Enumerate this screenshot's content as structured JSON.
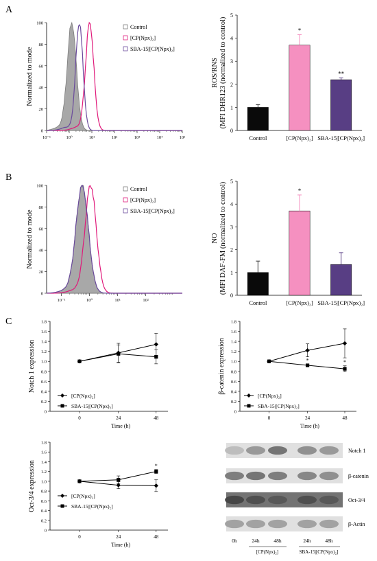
{
  "panels": {
    "A": "A",
    "B": "B",
    "C": "C"
  },
  "colors": {
    "control_hist": "#a8a8a8",
    "control_edge": "#7a7a7a",
    "cp_npx": "#e0197a",
    "sba_cp_npx": "#6a4a9c",
    "bar_control": "#0a0a0a",
    "bar_cp_npx": "#f590c0",
    "bar_sba_cp_npx": "#583e84"
  },
  "legend": {
    "control": "Control",
    "cp_npx": "[CP(Npx)₂]",
    "sba_cp_npx": "SBA-15|[CP(Npx)₂]"
  },
  "chart_data": [
    {
      "id": "A-histogram",
      "type": "area",
      "ylabel": "Normalized to mode",
      "xscale": "log",
      "xlim": [
        0.1,
        100000
      ],
      "ylim": [
        0,
        100
      ],
      "xticks": [
        "10⁻¹",
        "10⁰",
        "10¹",
        "10²",
        "10³",
        "10⁴",
        "10⁵"
      ],
      "yticks": [
        "0",
        "20",
        "40",
        "60",
        "80",
        "100"
      ],
      "series": [
        {
          "name": "Control",
          "peak_x": 1.3,
          "width": 0.2,
          "filled": true
        },
        {
          "name": "[CP(Npx)₂]",
          "peak_x": 8.0,
          "width": 0.18,
          "filled": false
        },
        {
          "name": "SBA-15|[CP(Npx)₂]",
          "peak_x": 2.8,
          "width": 0.16,
          "filled": false
        }
      ]
    },
    {
      "id": "A-bar",
      "type": "bar",
      "ylabel": "ROS/RNS",
      "ylabel2": "(MFI DHR123 (normalized to control)",
      "ylim": [
        0,
        5
      ],
      "yticks": [
        "0",
        "1",
        "2",
        "3",
        "4",
        "5"
      ],
      "categories": [
        "Control",
        "[CP(Npx)₂]",
        "SBA-15|[CP(Npx)₂]"
      ],
      "values": [
        1.0,
        3.7,
        2.2
      ],
      "errors": [
        0.12,
        0.45,
        0.08
      ],
      "annotations": [
        "",
        "*",
        "**"
      ]
    },
    {
      "id": "B-histogram",
      "type": "area",
      "ylabel": "Normalized to mode",
      "xscale": "log",
      "xlim": [
        0.03,
        2000
      ],
      "ylim": [
        0,
        100
      ],
      "xticks": [
        "10⁻¹",
        "10⁰",
        "10¹",
        "10²"
      ],
      "yticks": [
        "0",
        "20",
        "40",
        "60",
        "80",
        "100"
      ],
      "series": [
        {
          "name": "Control",
          "peak_x": 0.55,
          "width": 0.22,
          "filled": true
        },
        {
          "name": "[CP(Npx)₂]",
          "peak_x": 1.1,
          "width": 0.2,
          "filled": false
        },
        {
          "name": "SBA-15|[CP(Npx)₂]",
          "peak_x": 0.55,
          "width": 0.22,
          "filled": false
        }
      ]
    },
    {
      "id": "B-bar",
      "type": "bar",
      "ylabel": "NO",
      "ylabel2": "(MFI DAF-FM (normalized to control)",
      "ylim": [
        0,
        5
      ],
      "yticks": [
        "0",
        "1",
        "2",
        "3",
        "4",
        "5"
      ],
      "categories": [
        "Control",
        "[CP(Npx)₂]",
        "SBA-15|[CP(Npx)₂]"
      ],
      "values": [
        1.0,
        3.7,
        1.35
      ],
      "errors": [
        0.5,
        0.7,
        0.52
      ],
      "annotations": [
        "",
        "*",
        ""
      ]
    },
    {
      "id": "C-notch",
      "type": "line",
      "xlabel": "Time (h)",
      "ylabel": "Notch 1 expression",
      "ylim": [
        0,
        1.8
      ],
      "yticks": [
        "0",
        "0.2",
        "0.4",
        "0.6",
        "0.8",
        "1.0",
        "1.2",
        "1.4",
        "1.6",
        "1.8"
      ],
      "categories": [
        "0",
        "24",
        "48"
      ],
      "series": [
        {
          "name": "[CP(Npx)₂]",
          "marker": "diamond",
          "values": [
            1.0,
            1.17,
            1.34
          ],
          "errors": [
            0,
            0.19,
            0.22
          ],
          "annotations": [
            "",
            "",
            ""
          ]
        },
        {
          "name": "SBA-15|[CP(Npx)₂]",
          "marker": "square",
          "values": [
            1.0,
            1.15,
            1.09
          ],
          "errors": [
            0,
            0.18,
            0.14
          ],
          "annotations": [
            "",
            "",
            ""
          ]
        }
      ]
    },
    {
      "id": "C-catenin",
      "type": "line",
      "xlabel": "Time (h)",
      "ylabel": "β-catenin expression",
      "ylim": [
        0,
        1.8
      ],
      "yticks": [
        "0",
        "0.2",
        "0.4",
        "0.6",
        "0.8",
        "1.0",
        "1.2",
        "1.4",
        "1.6",
        "1.8"
      ],
      "categories": [
        "0",
        "24",
        "48"
      ],
      "series": [
        {
          "name": "[CP(Npx)₂]",
          "marker": "diamond",
          "values": [
            1.0,
            1.22,
            1.36
          ],
          "errors": [
            0,
            0.13,
            0.29
          ],
          "annotations": [
            "",
            "",
            ""
          ]
        },
        {
          "name": "SBA-15|[CP(Npx)₂]",
          "marker": "square",
          "values": [
            1.0,
            0.92,
            0.85
          ],
          "errors": [
            0,
            0.02,
            0.06
          ],
          "annotations": [
            "",
            "*",
            "*"
          ]
        }
      ]
    },
    {
      "id": "C-oct",
      "type": "line",
      "xlabel": "Time (h)",
      "ylabel": "Oct-3/4 expression",
      "ylim": [
        0,
        1.8
      ],
      "yticks": [
        "0",
        "0.2",
        "0.4",
        "0.6",
        "0.8",
        "1.0",
        "1.2",
        "1.4",
        "1.6",
        "1.8"
      ],
      "categories": [
        "0",
        "24",
        "48"
      ],
      "series": [
        {
          "name": "[CP(Npx)₂]",
          "marker": "diamond",
          "values": [
            1.0,
            0.92,
            0.91
          ],
          "errors": [
            0,
            0.07,
            0.12
          ],
          "annotations": [
            "",
            "",
            ""
          ]
        },
        {
          "name": "SBA-15|[CP(Npx)₂]",
          "marker": "square",
          "values": [
            1.0,
            1.03,
            1.2
          ],
          "errors": [
            0,
            0.08,
            0.04
          ],
          "annotations": [
            "",
            "",
            "*"
          ]
        }
      ]
    }
  ],
  "blot": {
    "proteins": [
      "Notch 1",
      "β-catenin",
      "Oct-3/4",
      "β-Actin"
    ],
    "lanes": [
      "0h",
      "24h",
      "48h",
      "24h",
      "48h"
    ],
    "groups": [
      "[CP(Npx)₂]",
      "SBA-15|[CP(Npx)₂]"
    ],
    "intensity": [
      [
        0.35,
        0.55,
        0.75,
        0.6,
        0.55
      ],
      [
        0.7,
        0.75,
        0.7,
        0.65,
        0.6
      ],
      [
        0.95,
        0.9,
        0.85,
        0.9,
        0.85
      ],
      [
        0.5,
        0.5,
        0.5,
        0.5,
        0.5
      ]
    ],
    "background": [
      0.12,
      0.12,
      0.55,
      0.12
    ]
  }
}
